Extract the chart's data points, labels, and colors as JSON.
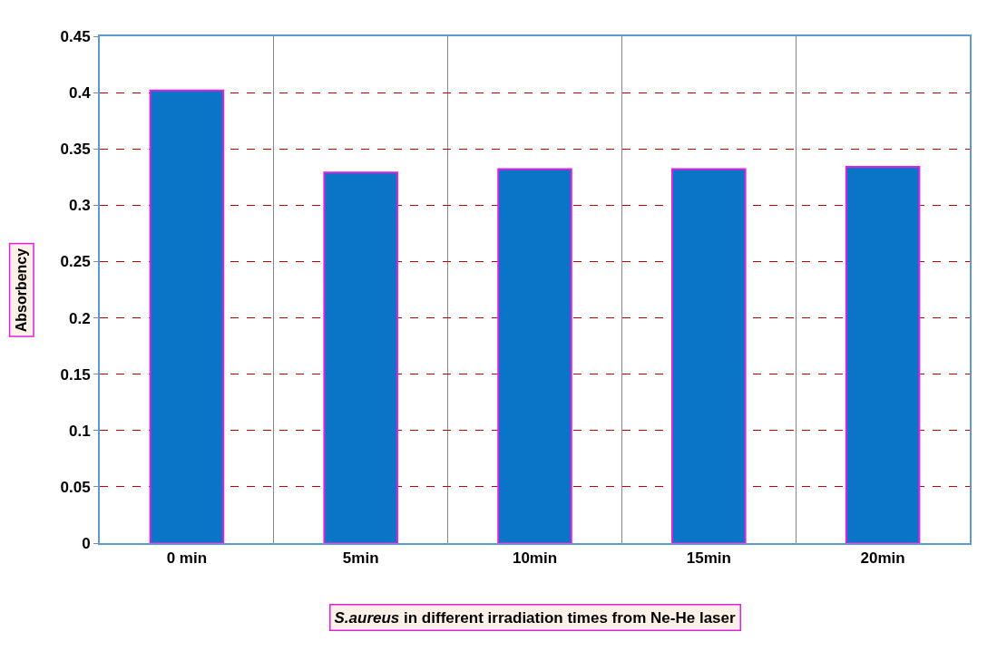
{
  "chart_data": {
    "type": "bar",
    "categories": [
      "0 min",
      "5min",
      "10min",
      "15min",
      "20min"
    ],
    "values": [
      0.402,
      0.329,
      0.332,
      0.332,
      0.334
    ],
    "color": "#0a74c6",
    "xlabel": "S.aureus in different irradiation times from Ne-He laser",
    "ylabel": "Absorbency",
    "ylim": [
      0,
      0.45
    ],
    "yticks": [
      0,
      0.05,
      0.1,
      0.15,
      0.2,
      0.25,
      0.3,
      0.35,
      0.4,
      0.45
    ],
    "grid": true
  }
}
